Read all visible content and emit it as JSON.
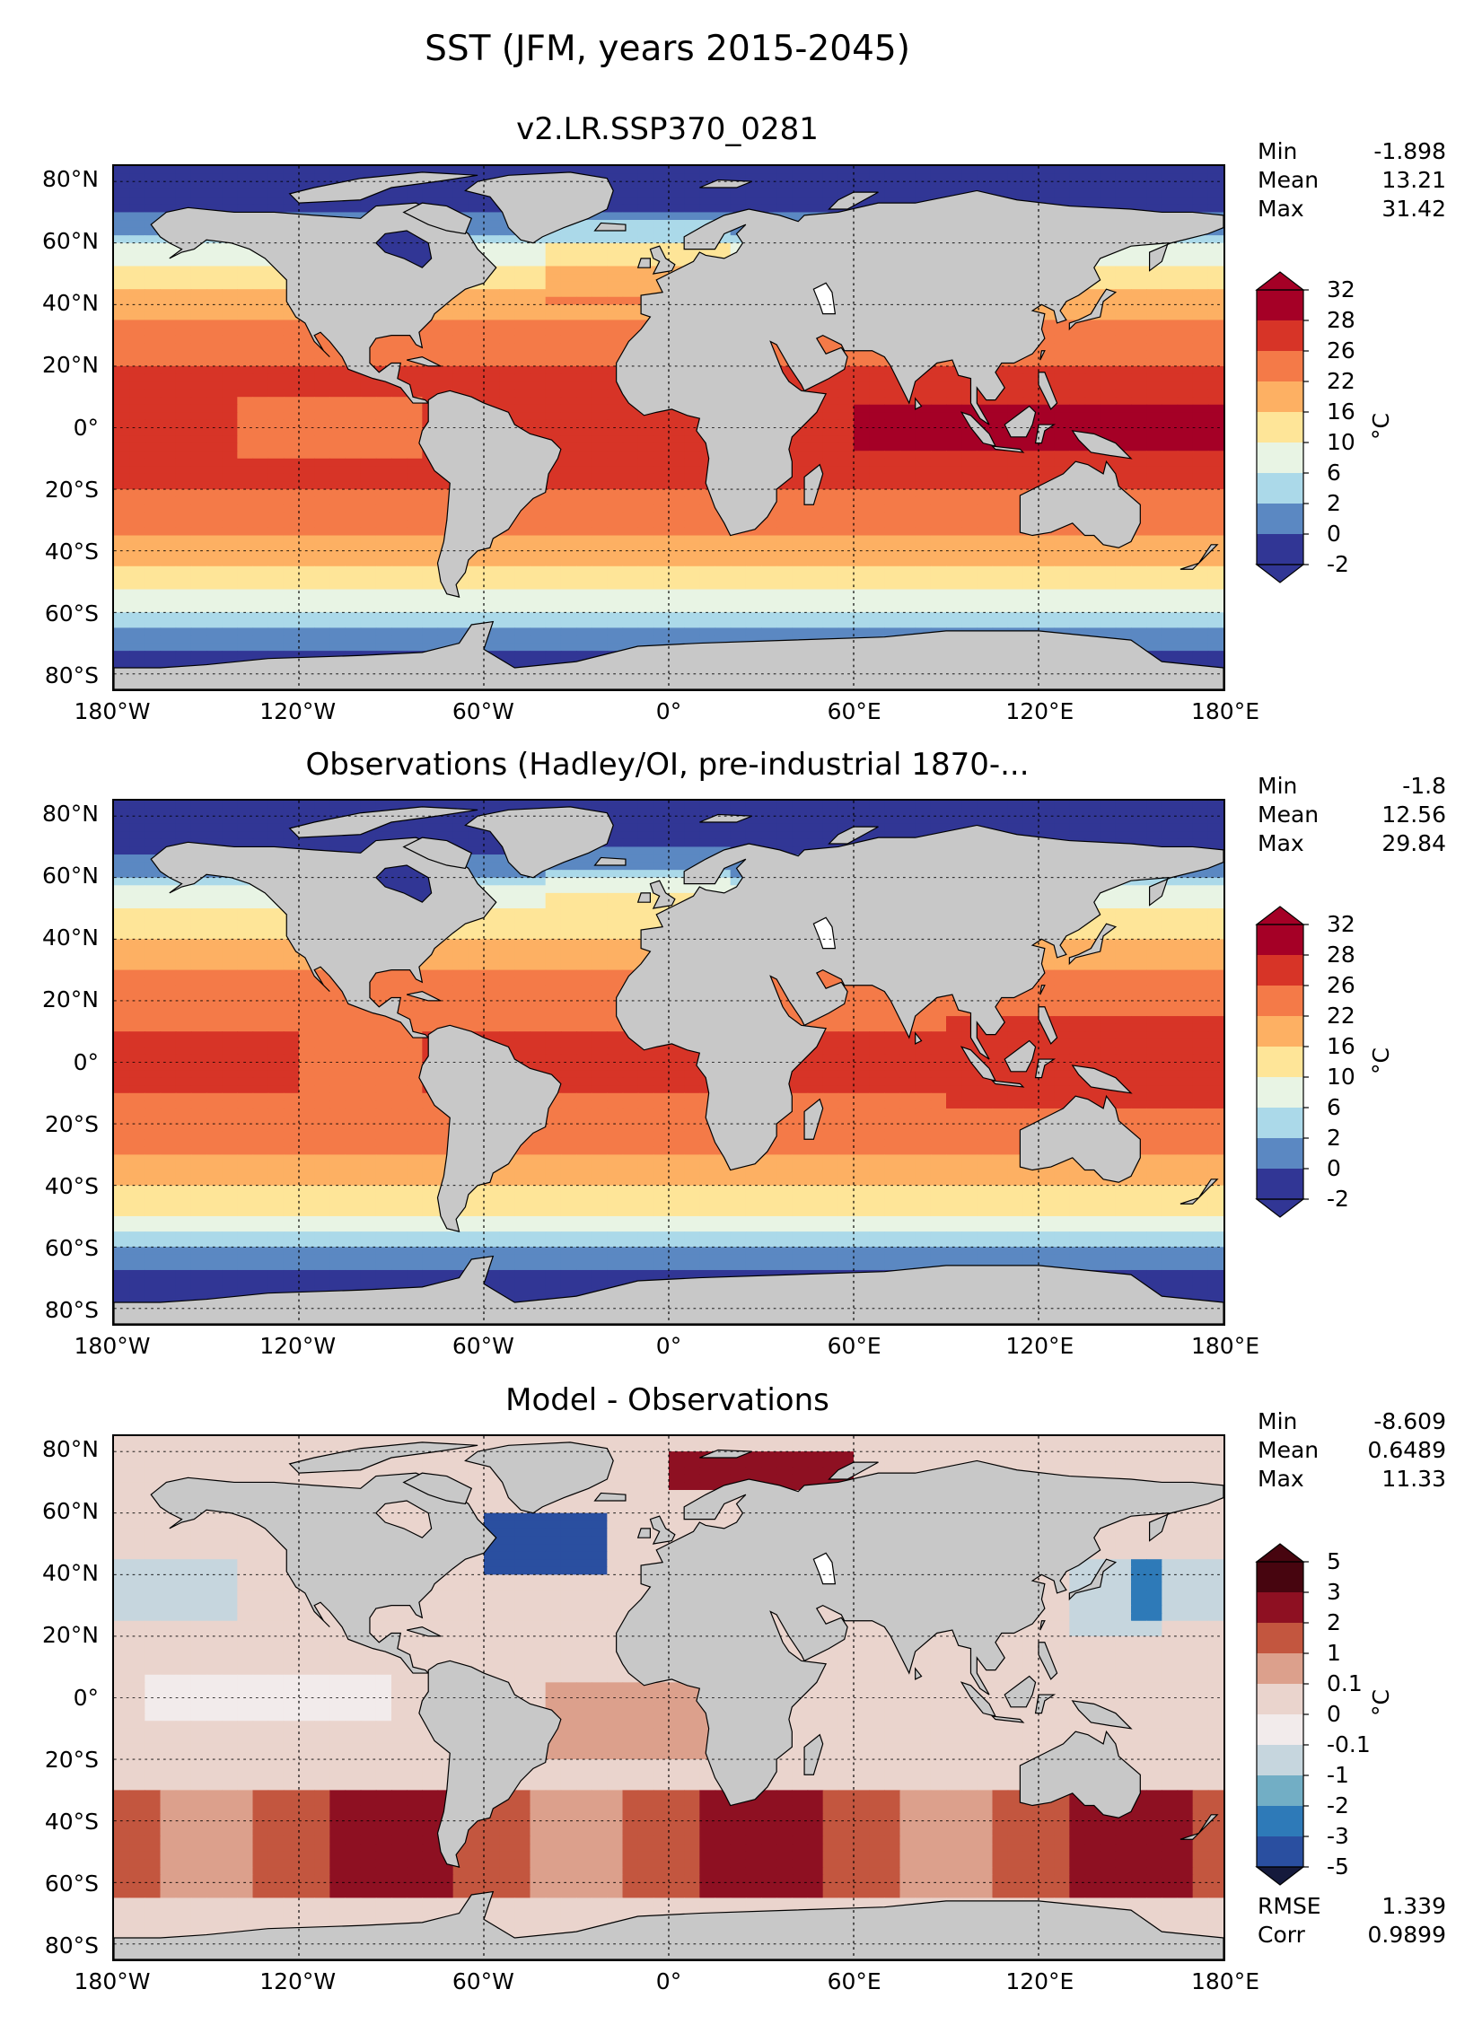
{
  "figure_title": "SST (JFM, years 2015-2045)",
  "colors": {
    "land": "#c8c8c8",
    "abs_levels": [
      "#313695",
      "#5b88c2",
      "#abd9e9",
      "#e8f4e4",
      "#fee598",
      "#fdb063",
      "#f47a48",
      "#d73427",
      "#a50026"
    ],
    "diff_levels": [
      "#151a3c",
      "#2a4fa0",
      "#2e7ab8",
      "#72aec5",
      "#c6d6de",
      "#f2ebeb",
      "#ead4cd",
      "#dca08c",
      "#c3563f",
      "#8e1022",
      "#47050f"
    ]
  },
  "panels": [
    {
      "title": "v2.LR.SSP370_0281",
      "stats": [
        {
          "label": "Min",
          "value": "-1.898"
        },
        {
          "label": "Mean",
          "value": "13.21"
        },
        {
          "label": "Max",
          "value": "31.42"
        }
      ],
      "colorbar": {
        "ticks": [
          "32",
          "28",
          "26",
          "22",
          "16",
          "10",
          "6",
          "2",
          "0",
          "-2"
        ],
        "unit": "°C"
      },
      "field": "model"
    },
    {
      "title": "Observations (Hadley/OI, pre-industrial 1870-...",
      "stats": [
        {
          "label": "Min",
          "value": "-1.8"
        },
        {
          "label": "Mean",
          "value": "12.56"
        },
        {
          "label": "Max",
          "value": "29.84"
        }
      ],
      "colorbar": {
        "ticks": [
          "32",
          "28",
          "26",
          "22",
          "16",
          "10",
          "6",
          "2",
          "0",
          "-2"
        ],
        "unit": "°C"
      },
      "field": "obs"
    },
    {
      "title": "Model - Observations",
      "stats": [
        {
          "label": "Min",
          "value": "-8.609"
        },
        {
          "label": "Mean",
          "value": "0.6489"
        },
        {
          "label": "Max",
          "value": "11.33"
        }
      ],
      "bottom_stats": [
        {
          "label": "RMSE",
          "value": "1.339"
        },
        {
          "label": "Corr",
          "value": "0.9899"
        }
      ],
      "colorbar": {
        "ticks": [
          "5",
          "3",
          "2",
          "1",
          "0.1",
          "0",
          "-0.1",
          "-1",
          "-2",
          "-3",
          "-5"
        ],
        "unit": "°C"
      },
      "field": "diff"
    }
  ],
  "axes": {
    "lat_labels": [
      "80°N",
      "60°N",
      "40°N",
      "20°N",
      "0°",
      "20°S",
      "40°S",
      "60°S",
      "80°S"
    ],
    "lon_labels": [
      "180°W",
      "120°W",
      "60°W",
      "0°",
      "60°E",
      "120°E",
      "180°E"
    ]
  }
}
